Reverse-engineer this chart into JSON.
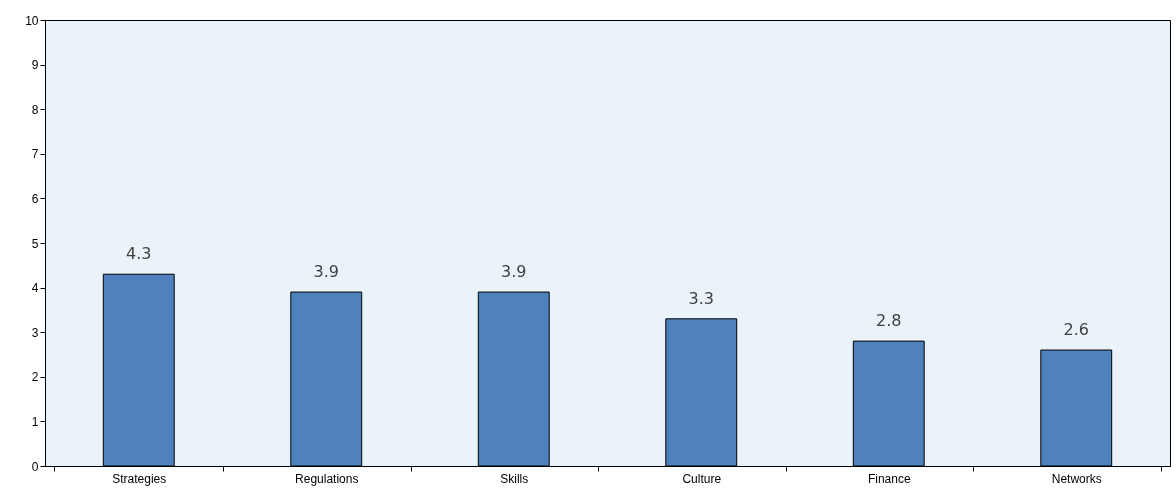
{
  "chart_data": {
    "type": "bar",
    "categories": [
      "Strategies",
      "Regulations",
      "Skills",
      "Culture",
      "Finance",
      "Networks"
    ],
    "values": [
      4.3,
      3.9,
      3.9,
      3.3,
      2.8,
      2.6
    ],
    "color": "#4f81bd",
    "ylim": [
      0,
      10
    ],
    "yticks": [
      0,
      1,
      2,
      3,
      4,
      5,
      6,
      7,
      8,
      9,
      10
    ],
    "grid": false,
    "data_labels": true
  }
}
